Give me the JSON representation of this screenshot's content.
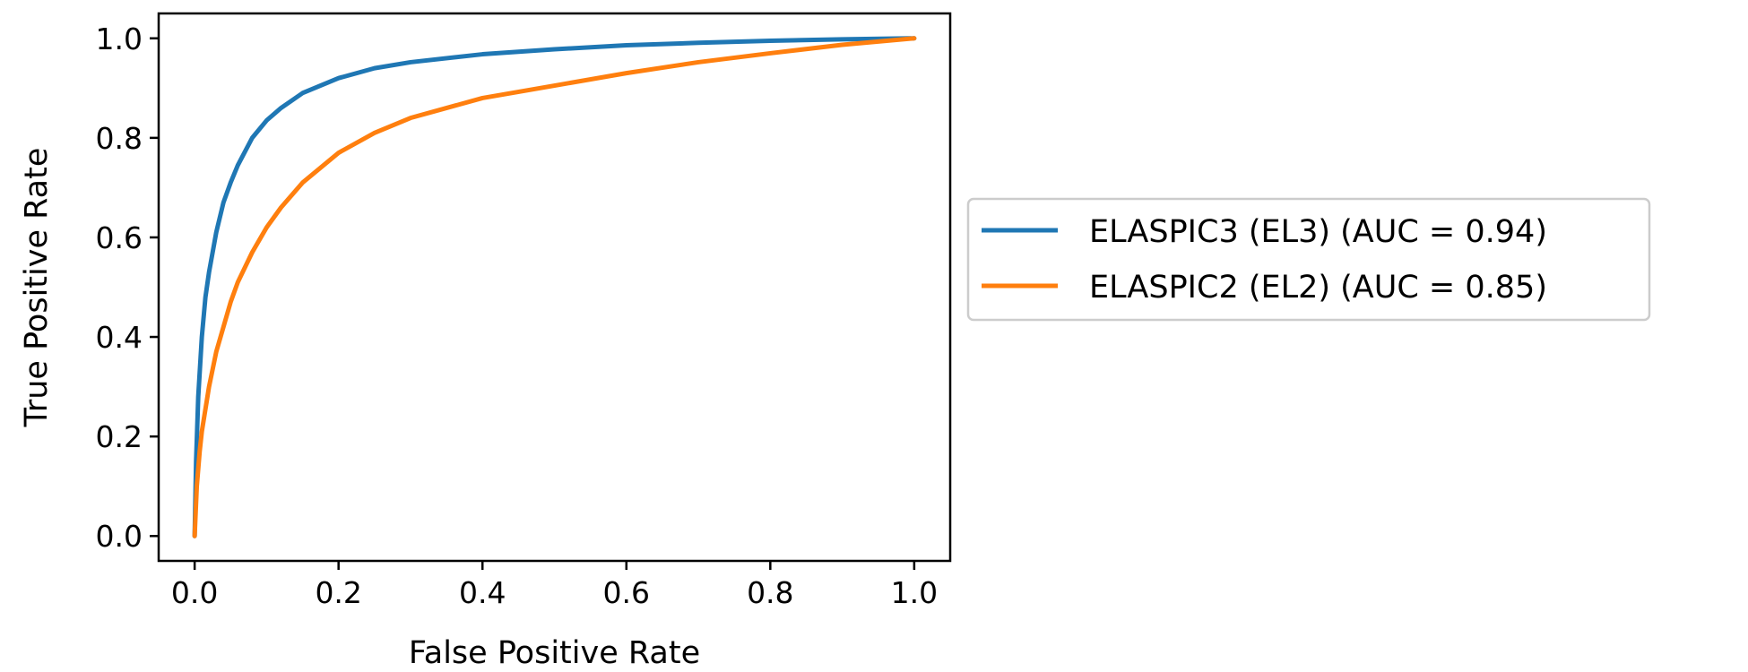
{
  "chart_data": {
    "type": "line",
    "title": "",
    "xlabel": "False Positive Rate",
    "ylabel": "True Positive Rate",
    "xlim": [
      -0.05,
      1.05
    ],
    "ylim": [
      -0.05,
      1.05
    ],
    "xticks": [
      0.0,
      0.2,
      0.4,
      0.6,
      0.8,
      1.0
    ],
    "yticks": [
      0.0,
      0.2,
      0.4,
      0.6,
      0.8,
      1.0
    ],
    "xtick_labels": [
      "0.0",
      "0.2",
      "0.4",
      "0.6",
      "0.8",
      "1.0"
    ],
    "ytick_labels": [
      "0.0",
      "0.2",
      "0.4",
      "0.6",
      "0.8",
      "1.0"
    ],
    "grid": false,
    "legend_position": "outside-right",
    "series": [
      {
        "name": "ELASPIC3 (EL3) (AUC = 0.94)",
        "color": "#1f77b4",
        "x": [
          0.0,
          0.002,
          0.005,
          0.01,
          0.015,
          0.02,
          0.03,
          0.04,
          0.05,
          0.06,
          0.08,
          0.1,
          0.12,
          0.15,
          0.2,
          0.25,
          0.3,
          0.4,
          0.5,
          0.6,
          0.7,
          0.8,
          0.9,
          1.0
        ],
        "y": [
          0.0,
          0.15,
          0.28,
          0.4,
          0.48,
          0.53,
          0.61,
          0.67,
          0.71,
          0.745,
          0.8,
          0.835,
          0.86,
          0.89,
          0.92,
          0.94,
          0.952,
          0.968,
          0.978,
          0.986,
          0.991,
          0.995,
          0.998,
          1.0
        ]
      },
      {
        "name": "ELASPIC2 (EL2) (AUC = 0.85)",
        "color": "#ff7f0e",
        "x": [
          0.0,
          0.003,
          0.007,
          0.01,
          0.02,
          0.03,
          0.04,
          0.05,
          0.06,
          0.08,
          0.1,
          0.12,
          0.15,
          0.2,
          0.25,
          0.3,
          0.4,
          0.5,
          0.6,
          0.7,
          0.8,
          0.9,
          1.0
        ],
        "y": [
          0.0,
          0.1,
          0.17,
          0.21,
          0.3,
          0.37,
          0.42,
          0.47,
          0.51,
          0.57,
          0.62,
          0.66,
          0.71,
          0.77,
          0.81,
          0.84,
          0.88,
          0.905,
          0.93,
          0.952,
          0.97,
          0.987,
          1.0
        ]
      }
    ]
  }
}
